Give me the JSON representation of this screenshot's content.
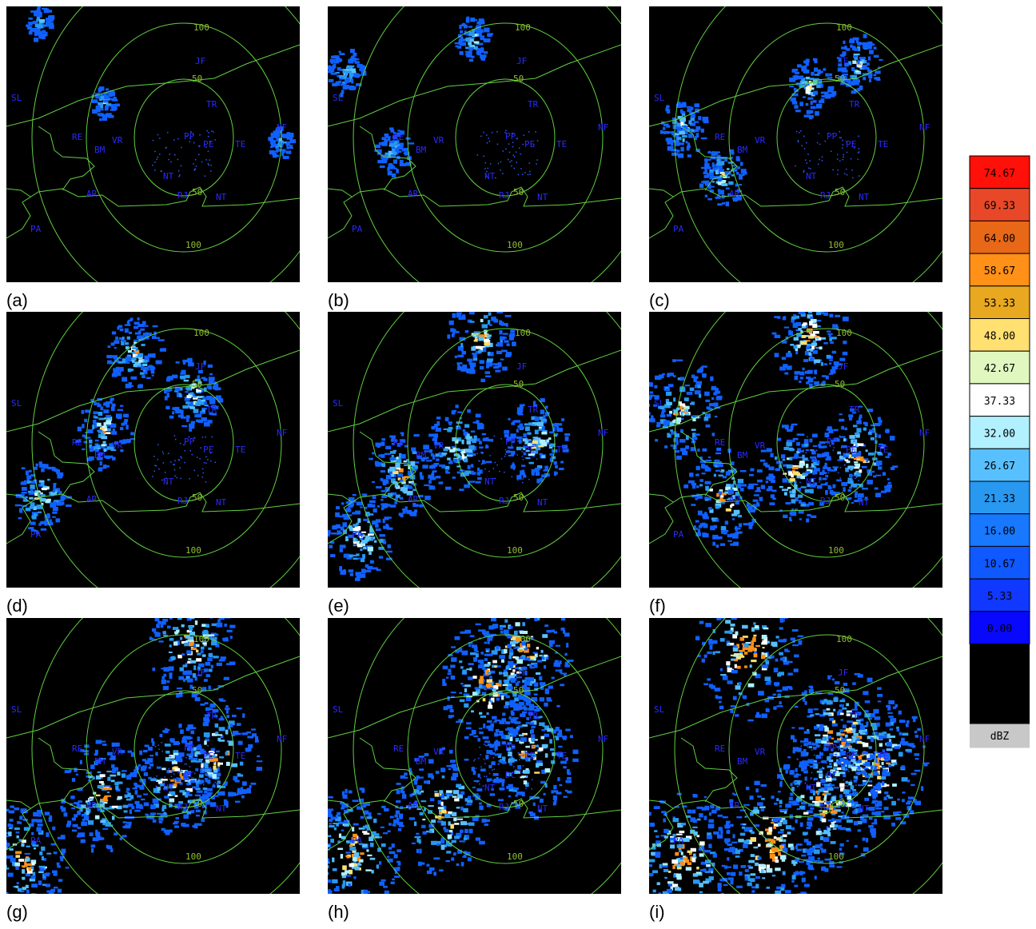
{
  "panels": [
    {
      "label": "(a)"
    },
    {
      "label": "(b)"
    },
    {
      "label": "(c)"
    },
    {
      "label": "(d)"
    },
    {
      "label": "(e)"
    },
    {
      "label": "(f)"
    },
    {
      "label": "(g)",
      "labels": [
        "DC"
      ]
    },
    {
      "label": "(h)",
      "labels": [
        "DC"
      ]
    },
    {
      "label": "(i)",
      "labels": [
        "DC"
      ]
    }
  ],
  "map_labels": {
    "ring_top_100": "100",
    "ring_top_50": "50",
    "ring_bottom_50": "50",
    "ring_bottom_100": "100",
    "stations": [
      "JF",
      "TR",
      "PP",
      "PE",
      "TE",
      "NF",
      "RE",
      "VR",
      "BM",
      "NT",
      "RJ",
      "NT",
      "AR",
      "PA",
      "SL"
    ]
  },
  "legend": {
    "items": [
      {
        "label": "74.67",
        "color": "#ff1008"
      },
      {
        "label": "69.33",
        "color": "#e84828"
      },
      {
        "label": "64.00",
        "color": "#e86818"
      },
      {
        "label": "58.67",
        "color": "#ff9018"
      },
      {
        "label": "53.33",
        "color": "#e8a820"
      },
      {
        "label": "48.00",
        "color": "#ffe070"
      },
      {
        "label": "42.67",
        "color": "#e0f8c0"
      },
      {
        "label": "37.33",
        "color": "#ffffff"
      },
      {
        "label": "32.00",
        "color": "#b0f0ff"
      },
      {
        "label": "26.67",
        "color": "#58c0ff"
      },
      {
        "label": "21.33",
        "color": "#2898f0"
      },
      {
        "label": "16.00",
        "color": "#1878ff"
      },
      {
        "label": "10.67",
        "color": "#1058ff"
      },
      {
        "label": "5.33",
        "color": "#1038ff"
      },
      {
        "label": "0.00",
        "color": "#0808ff"
      }
    ],
    "unit": "dBZ"
  }
}
